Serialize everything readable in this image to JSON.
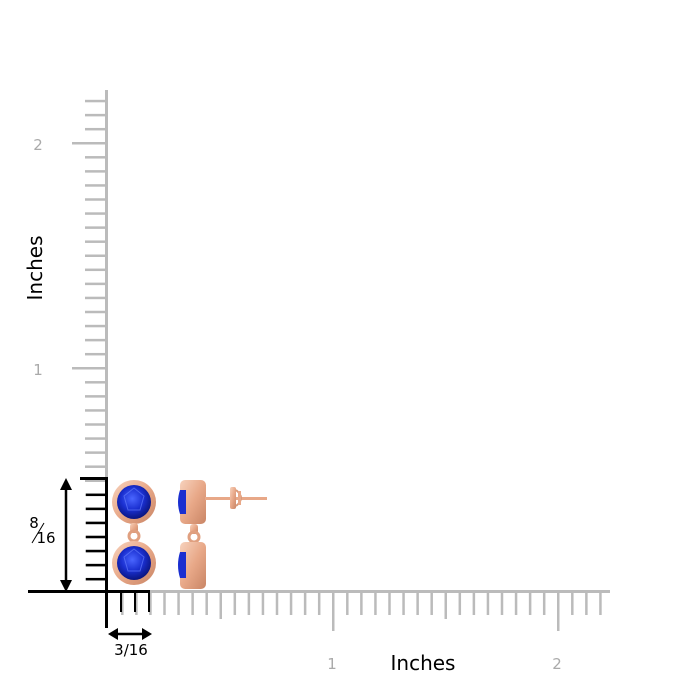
{
  "ruler": {
    "vertical_label": "Inches",
    "horizontal_label": "Inches",
    "vertical_ticks": [
      "1",
      "2"
    ],
    "horizontal_ticks": [
      "1",
      "2"
    ],
    "ruler_color": "#bbbbbb",
    "marker_color": "#000000"
  },
  "dimensions": {
    "height_numerator": "8",
    "height_denominator": "16",
    "width_label": "3/16"
  },
  "product": {
    "stone_color": "#1a2fd0",
    "metal_color": "#e8a888"
  }
}
